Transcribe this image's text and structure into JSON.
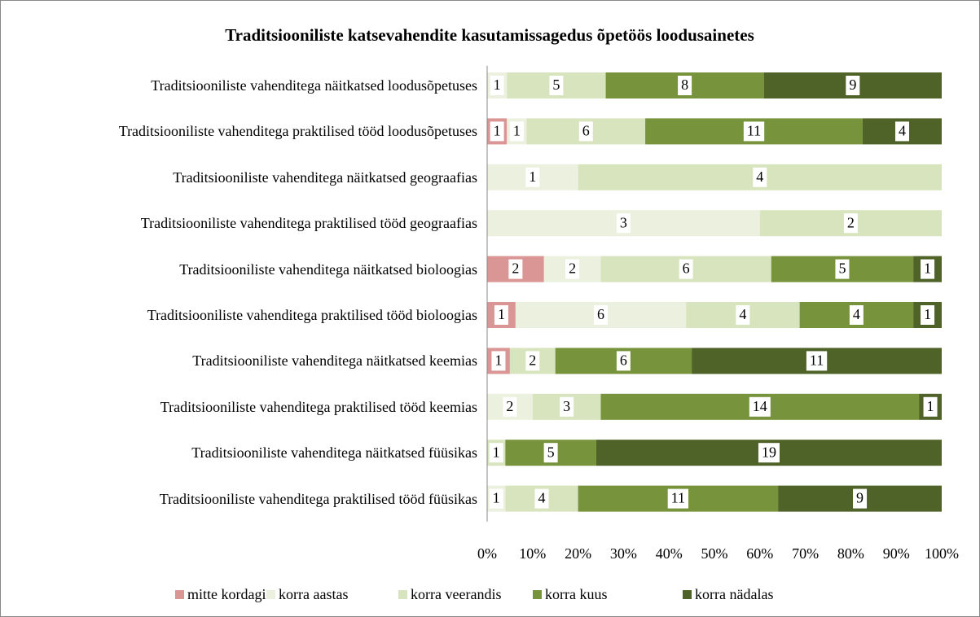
{
  "chart_data": {
    "type": "bar",
    "orientation": "horizontal",
    "stacking": "percent",
    "title": "Traditsiooniliste katsevahendite kasutamissagedus õpetöös loodusainetes",
    "categories": [
      "Traditsiooniliste vahenditega näitkatsed loodusõpetuses",
      "Traditsiooniliste vahenditega praktilised tööd loodusõpetuses",
      "Traditsiooniliste vahenditega näitkatsed geograafias",
      "Traditsiooniliste vahenditega praktilised tööd geograafias",
      "Traditsiooniliste vahenditega näitkatsed bioloogias",
      "Traditsiooniliste vahenditega praktilised tööd bioloogias",
      "Traditsiooniliste vahenditega näitkatsed keemias",
      "Traditsiooniliste vahenditega praktilised tööd keemias",
      "Traditsiooniliste vahenditega näitkatsed füüsikas",
      "Traditsiooniliste vahenditega praktilised tööd füüsikas"
    ],
    "series": [
      {
        "name": "mitte kordagi",
        "color": "#d99694",
        "values": [
          0,
          1,
          0,
          0,
          2,
          1,
          1,
          0,
          0,
          0
        ]
      },
      {
        "name": "korra aastas",
        "color": "#ebf1de",
        "values": [
          1,
          1,
          1,
          3,
          2,
          6,
          0,
          2,
          0,
          1
        ]
      },
      {
        "name": "korra veerandis",
        "color": "#d7e4bd",
        "values": [
          5,
          6,
          4,
          2,
          6,
          4,
          2,
          3,
          1,
          4
        ]
      },
      {
        "name": "korra kuus",
        "color": "#77933c",
        "values": [
          8,
          11,
          0,
          0,
          5,
          4,
          6,
          14,
          5,
          11
        ]
      },
      {
        "name": "korra nädalas",
        "color": "#4f6228",
        "values": [
          9,
          4,
          0,
          0,
          1,
          1,
          11,
          1,
          19,
          9
        ]
      }
    ],
    "xlim": [
      0,
      100
    ],
    "xticks": [
      {
        "value": 0,
        "label": "0%"
      },
      {
        "value": 10,
        "label": "10%"
      },
      {
        "value": 20,
        "label": "20%"
      },
      {
        "value": 30,
        "label": "30%"
      },
      {
        "value": 40,
        "label": "40%"
      },
      {
        "value": 50,
        "label": "50%"
      },
      {
        "value": 60,
        "label": "60%"
      },
      {
        "value": 70,
        "label": "70%"
      },
      {
        "value": 80,
        "label": "80%"
      },
      {
        "value": 90,
        "label": "90%"
      },
      {
        "value": 100,
        "label": "100%"
      }
    ],
    "legend": "bottom"
  }
}
